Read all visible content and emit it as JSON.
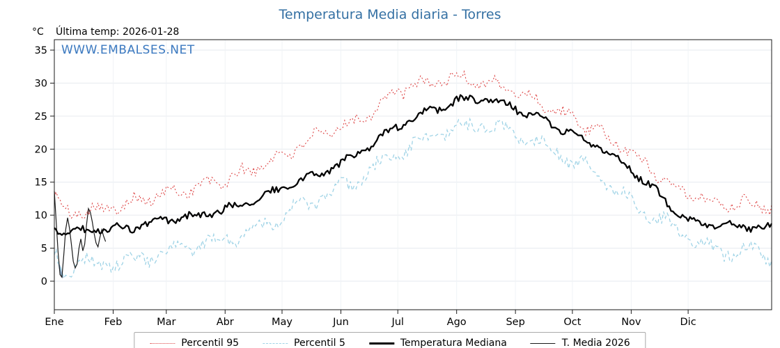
{
  "title": "Temperatura Media diaria - Torres",
  "header": {
    "unit": "°C",
    "last_temp": "Última temp: 2026-01-28"
  },
  "watermark": "WWW.EMBALSES.NET",
  "legend": [
    {
      "key": "p95",
      "label": "Percentil 95"
    },
    {
      "key": "p5",
      "label": "Percentil 5"
    },
    {
      "key": "median",
      "label": "Temperatura Mediana"
    },
    {
      "key": "t2026",
      "label": "T. Media 2026"
    }
  ],
  "chart_data": {
    "type": "line",
    "title": "Temperatura Media diaria - Torres",
    "xlabel": "",
    "ylabel": "°C",
    "grid": true,
    "legend_position": "bottom",
    "colors": {
      "title": "#3470a3",
      "watermark": "#3b79c0",
      "p95": "#dd4444",
      "p5": "#9fd3e6",
      "median": "#000000",
      "t2026": "#1a1a1a",
      "fill_below_p5": "#7ba3c8",
      "fill_above_p95": "#d07f7f",
      "grid_h": "#e6eaef",
      "grid_v": "#f0f3f6",
      "axis": "#1a1a1a"
    },
    "x_axis": {
      "months": [
        "Ene",
        "Feb",
        "Mar",
        "Abr",
        "May",
        "Jun",
        "Jul",
        "Ago",
        "Sep",
        "Oct",
        "Nov",
        "Dic"
      ],
      "month_start_days": [
        0,
        31,
        59,
        90,
        120,
        151,
        181,
        212,
        243,
        273,
        304,
        334
      ],
      "domain_days": 378
    },
    "y_axis": {
      "ticks": [
        0,
        5,
        10,
        15,
        20,
        25,
        30,
        35
      ],
      "range": [
        -4.3,
        36.6
      ],
      "unit": "°C"
    },
    "series_anchors": {
      "p95": {
        "name": "Percentil 95",
        "days": [
          0,
          5,
          14,
          22,
          31,
          45,
          59,
          74,
          90,
          105,
          120,
          135,
          151,
          166,
          181,
          196,
          212,
          227,
          243,
          258,
          273,
          288,
          304,
          319,
          334,
          349,
          364,
          378
        ],
        "values": [
          13,
          10.4,
          10.6,
          10.9,
          11.3,
          12.3,
          13.2,
          14.2,
          15.3,
          17,
          19,
          21.5,
          23.2,
          25.5,
          28.8,
          30,
          30.8,
          30.2,
          28.8,
          26.8,
          24.6,
          22.3,
          19.5,
          16,
          13.2,
          11.8,
          11.8,
          11.3
        ]
      },
      "p5": {
        "name": "Percentil 5",
        "days": [
          0,
          5,
          14,
          22,
          31,
          45,
          59,
          74,
          90,
          105,
          120,
          135,
          151,
          166,
          181,
          196,
          212,
          227,
          243,
          258,
          273,
          288,
          304,
          319,
          334,
          349,
          364,
          378
        ],
        "values": [
          4,
          1.2,
          3.4,
          2.2,
          2.8,
          3.2,
          4.2,
          5.3,
          6.3,
          7.8,
          10,
          12,
          14,
          16.5,
          19.5,
          21.5,
          23,
          23.8,
          22.3,
          20.8,
          18.3,
          15.8,
          12,
          9.3,
          6.8,
          4.3,
          4.8,
          3.8
        ]
      },
      "median": {
        "name": "Temperatura Mediana",
        "days": [
          0,
          5,
          14,
          22,
          31,
          45,
          59,
          74,
          90,
          105,
          120,
          135,
          151,
          166,
          181,
          196,
          212,
          227,
          243,
          258,
          273,
          288,
          304,
          319,
          334,
          349,
          364,
          378
        ],
        "values": [
          8,
          7.4,
          7.6,
          7.9,
          7.8,
          8.3,
          9.3,
          9.8,
          10.8,
          12.3,
          14,
          15.8,
          17.8,
          20.3,
          23.5,
          25.5,
          27.3,
          27.8,
          26.3,
          24.3,
          22.3,
          20.3,
          17,
          13,
          9.3,
          8.3,
          8.3,
          8
        ]
      }
    },
    "t2026_daily": [
      13.6,
      9.0,
      4.4,
      1.0,
      0.6,
      4.0,
      7.8,
      9.6,
      8.0,
      5.6,
      3.0,
      2.0,
      2.6,
      5.0,
      6.4,
      4.6,
      5.6,
      8.6,
      11.0,
      10.4,
      9.0,
      7.2,
      5.8,
      5.2,
      6.6,
      7.8,
      6.8,
      6.0
    ],
    "t2026_last_date": "2026-01-28"
  }
}
